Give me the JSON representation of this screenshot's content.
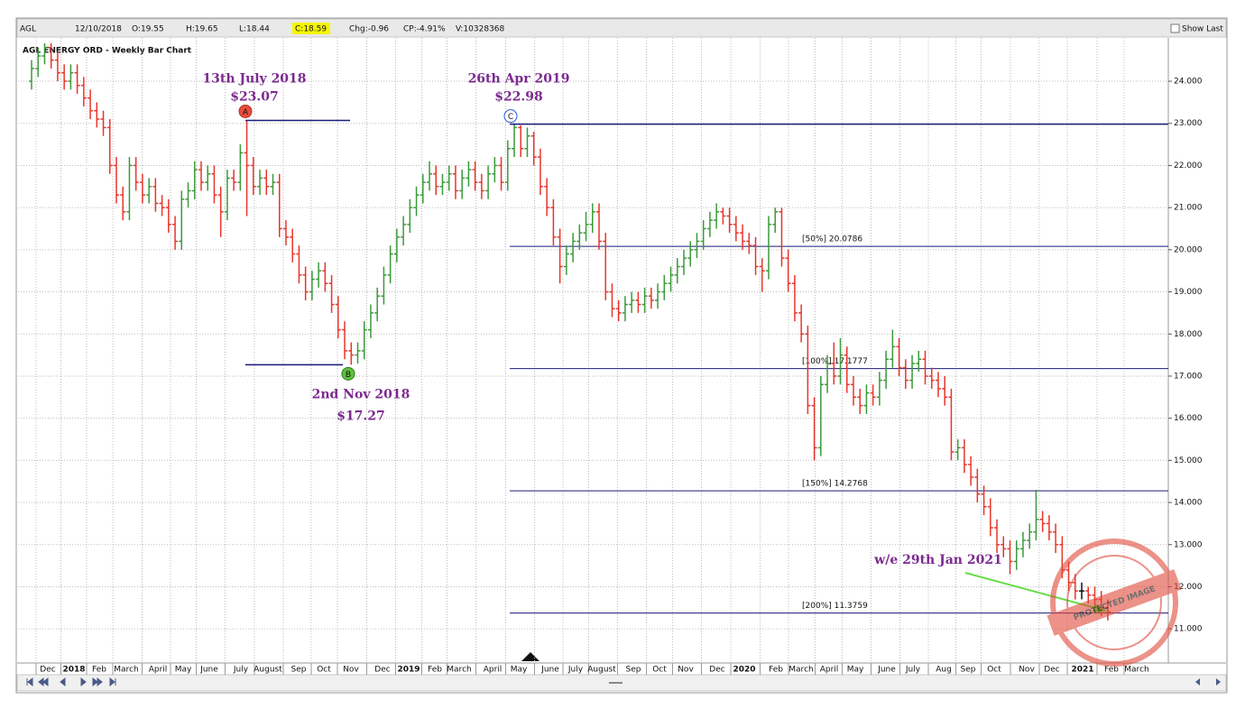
{
  "toolbar": {
    "symbol": "AGL",
    "date": "12/10/2018",
    "open": "O:19.55",
    "high": "H:19.65",
    "low": "L:18.44",
    "close": "C:18.59",
    "change": "Chg:-0.96",
    "change_percent": "CP:-4.91%",
    "volume": "V:10328368",
    "show_last": "Show Last"
  },
  "chart_data": {
    "type": "ohlc",
    "title": "AGL ENERGY ORD - Weekly Bar Chart",
    "up_color": "#3a9a3a",
    "down_color": "#e8352b",
    "grid": true,
    "ylim": [
      10.19,
      24.9
    ],
    "yticks": [
      {
        "value": 11,
        "label": "11.000"
      },
      {
        "value": 12,
        "label": "12.000"
      },
      {
        "value": 13,
        "label": "13.000"
      },
      {
        "value": 14,
        "label": "14.000"
      },
      {
        "value": 15,
        "label": "15.000"
      },
      {
        "value": 16,
        "label": "16.000"
      },
      {
        "value": 17,
        "label": "17.000"
      },
      {
        "value": 18,
        "label": "18.000"
      },
      {
        "value": 19,
        "label": "19.000"
      },
      {
        "value": 20,
        "label": "20.000"
      },
      {
        "value": 21,
        "label": "21.000"
      },
      {
        "value": 22,
        "label": "22.000"
      },
      {
        "value": 23,
        "label": "23.000"
      },
      {
        "value": 24,
        "label": "24.000"
      }
    ],
    "x_labels": [
      "Dec",
      "2018",
      "Feb",
      "March",
      "April",
      "May",
      "June",
      "July",
      "August",
      "Sep",
      "Oct",
      "Nov",
      "Dec",
      "2019",
      "Feb",
      "March",
      "April",
      "May",
      "June",
      "July",
      "August",
      "Sep",
      "Oct",
      "Nov",
      "Dec",
      "2020",
      "Feb",
      "March",
      "April",
      "May",
      "June",
      "July",
      "Aug",
      "Sep",
      "Oct",
      "Nov",
      "Dec",
      "2021",
      "Feb",
      "March"
    ],
    "annotations": [
      {
        "marker": "A",
        "date": "13th July 2018",
        "price": {
          "value": 23.07,
          "label": "$23.07"
        }
      },
      {
        "marker": "B",
        "date": "2nd Nov 2018",
        "price": {
          "value": 17.27,
          "label": "$17.27"
        }
      },
      {
        "marker": "C",
        "date": "26th Apr 2019",
        "price": {
          "value": 22.98,
          "label": "$22.98"
        }
      }
    ],
    "fib_levels": [
      {
        "value": 20.0786,
        "label": "[50%] 20.0786"
      },
      {
        "value": 17.1777,
        "label": "[100%] 17.1777"
      },
      {
        "value": 14.2768,
        "label": "[150%] 14.2768"
      },
      {
        "value": 11.3759,
        "label": "[200%] 11.3759"
      }
    ],
    "note": "w/e 29th Jan 2021",
    "watermark": "PROTECTED IMAGE",
    "bars": [
      [
        24.0,
        24.5,
        23.8,
        24.3
      ],
      [
        24.3,
        24.8,
        24.1,
        24.6
      ],
      [
        24.6,
        24.9,
        24.4,
        24.8
      ],
      [
        24.8,
        24.9,
        24.3,
        24.5
      ],
      [
        24.5,
        24.7,
        24.0,
        24.2
      ],
      [
        24.2,
        24.4,
        23.8,
        24.0
      ],
      [
        24.0,
        24.4,
        23.8,
        24.2
      ],
      [
        24.2,
        24.4,
        23.7,
        23.9
      ],
      [
        23.9,
        24.1,
        23.4,
        23.6
      ],
      [
        23.6,
        23.8,
        23.1,
        23.3
      ],
      [
        23.3,
        23.5,
        22.9,
        23.1
      ],
      [
        23.1,
        23.3,
        22.7,
        22.9
      ],
      [
        22.9,
        23.1,
        21.8,
        22.0
      ],
      [
        22.0,
        22.2,
        21.1,
        21.3
      ],
      [
        21.3,
        21.5,
        20.7,
        20.9
      ],
      [
        20.9,
        22.2,
        20.7,
        22.0
      ],
      [
        22.0,
        22.2,
        21.4,
        21.6
      ],
      [
        21.6,
        21.8,
        21.1,
        21.3
      ],
      [
        21.3,
        21.7,
        21.1,
        21.5
      ],
      [
        21.5,
        21.7,
        20.9,
        21.1
      ],
      [
        21.1,
        21.3,
        20.8,
        21.0
      ],
      [
        21.0,
        21.2,
        20.4,
        20.6
      ],
      [
        20.6,
        20.8,
        20.0,
        20.2
      ],
      [
        20.2,
        21.4,
        20.0,
        21.2
      ],
      [
        21.2,
        21.6,
        21.0,
        21.4
      ],
      [
        21.4,
        22.1,
        21.2,
        21.9
      ],
      [
        21.9,
        22.1,
        21.4,
        21.6
      ],
      [
        21.6,
        22.0,
        21.4,
        21.8
      ],
      [
        21.8,
        22.0,
        21.1,
        21.3
      ],
      [
        21.3,
        21.5,
        20.3,
        20.9
      ],
      [
        20.9,
        21.9,
        20.7,
        21.7
      ],
      [
        21.7,
        21.9,
        21.4,
        21.6
      ],
      [
        21.6,
        22.5,
        21.4,
        22.3
      ],
      [
        22.3,
        23.07,
        20.8,
        22.0
      ],
      [
        22.0,
        22.2,
        21.3,
        21.5
      ],
      [
        21.5,
        21.9,
        21.3,
        21.7
      ],
      [
        21.7,
        21.9,
        21.3,
        21.5
      ],
      [
        21.5,
        21.8,
        21.3,
        21.6
      ],
      [
        21.6,
        21.8,
        20.3,
        20.5
      ],
      [
        20.5,
        20.7,
        20.1,
        20.3
      ],
      [
        20.3,
        20.5,
        19.7,
        19.9
      ],
      [
        19.9,
        20.1,
        19.2,
        19.4
      ],
      [
        19.4,
        19.6,
        18.8,
        19.0
      ],
      [
        19.0,
        19.5,
        18.8,
        19.3
      ],
      [
        19.3,
        19.7,
        19.1,
        19.5
      ],
      [
        19.5,
        19.7,
        19.0,
        19.2
      ],
      [
        19.2,
        19.4,
        18.5,
        18.7
      ],
      [
        18.7,
        18.9,
        17.9,
        18.1
      ],
      [
        18.1,
        18.3,
        17.4,
        17.6
      ],
      [
        17.6,
        17.8,
        17.27,
        17.5
      ],
      [
        17.5,
        17.8,
        17.3,
        17.6
      ],
      [
        17.6,
        18.3,
        17.4,
        18.1
      ],
      [
        18.1,
        18.7,
        17.9,
        18.5
      ],
      [
        18.5,
        19.1,
        18.3,
        18.9
      ],
      [
        18.9,
        19.6,
        18.7,
        19.4
      ],
      [
        19.4,
        20.1,
        19.2,
        19.9
      ],
      [
        19.9,
        20.5,
        19.7,
        20.3
      ],
      [
        20.3,
        20.8,
        20.1,
        20.6
      ],
      [
        20.6,
        21.2,
        20.4,
        21.0
      ],
      [
        21.0,
        21.5,
        20.8,
        21.3
      ],
      [
        21.3,
        21.8,
        21.1,
        21.6
      ],
      [
        21.6,
        22.1,
        21.4,
        21.8
      ],
      [
        21.8,
        22.0,
        21.3,
        21.5
      ],
      [
        21.5,
        21.8,
        21.3,
        21.6
      ],
      [
        21.6,
        22.0,
        21.4,
        21.8
      ],
      [
        21.8,
        22.0,
        21.2,
        21.4
      ],
      [
        21.4,
        21.9,
        21.2,
        21.7
      ],
      [
        21.7,
        22.1,
        21.5,
        21.9
      ],
      [
        21.9,
        22.1,
        21.4,
        21.6
      ],
      [
        21.6,
        21.8,
        21.2,
        21.4
      ],
      [
        21.4,
        22.0,
        21.2,
        21.8
      ],
      [
        21.8,
        22.2,
        21.6,
        22.0
      ],
      [
        22.0,
        22.2,
        21.4,
        21.6
      ],
      [
        21.6,
        22.6,
        21.4,
        22.4
      ],
      [
        22.4,
        22.98,
        22.2,
        22.9
      ],
      [
        22.9,
        22.95,
        22.2,
        22.4
      ],
      [
        22.4,
        22.9,
        22.2,
        22.7
      ],
      [
        22.7,
        22.8,
        22.0,
        22.2
      ],
      [
        22.2,
        22.4,
        21.3,
        21.5
      ],
      [
        21.5,
        21.7,
        20.8,
        21.0
      ],
      [
        21.0,
        21.2,
        20.1,
        20.3
      ],
      [
        20.3,
        20.5,
        19.2,
        19.6
      ],
      [
        19.6,
        20.1,
        19.4,
        19.9
      ],
      [
        19.9,
        20.4,
        19.7,
        20.2
      ],
      [
        20.2,
        20.6,
        20.0,
        20.4
      ],
      [
        20.4,
        20.9,
        20.2,
        20.6
      ],
      [
        20.6,
        21.1,
        20.4,
        20.9
      ],
      [
        20.9,
        21.1,
        20.0,
        20.2
      ],
      [
        20.2,
        20.4,
        18.8,
        19.0
      ],
      [
        19.0,
        19.2,
        18.4,
        18.6
      ],
      [
        18.6,
        18.8,
        18.3,
        18.5
      ],
      [
        18.5,
        18.9,
        18.3,
        18.7
      ],
      [
        18.7,
        19.0,
        18.5,
        18.8
      ],
      [
        18.8,
        19.0,
        18.5,
        18.7
      ],
      [
        18.7,
        19.1,
        18.5,
        18.9
      ],
      [
        18.9,
        19.1,
        18.6,
        18.8
      ],
      [
        18.8,
        19.2,
        18.6,
        19.0
      ],
      [
        19.0,
        19.4,
        18.8,
        19.2
      ],
      [
        19.2,
        19.6,
        19.0,
        19.4
      ],
      [
        19.4,
        19.8,
        19.2,
        19.6
      ],
      [
        19.6,
        20.0,
        19.4,
        19.8
      ],
      [
        19.8,
        20.2,
        19.6,
        20.0
      ],
      [
        20.0,
        20.4,
        19.8,
        20.2
      ],
      [
        20.2,
        20.7,
        20.0,
        20.5
      ],
      [
        20.5,
        20.9,
        20.3,
        20.7
      ],
      [
        20.7,
        21.1,
        20.5,
        20.9
      ],
      [
        20.9,
        21.0,
        20.6,
        20.8
      ],
      [
        20.8,
        21.0,
        20.4,
        20.6
      ],
      [
        20.6,
        20.8,
        20.2,
        20.4
      ],
      [
        20.4,
        20.6,
        20.0,
        20.2
      ],
      [
        20.2,
        20.4,
        19.9,
        20.1
      ],
      [
        20.1,
        20.3,
        19.4,
        19.6
      ],
      [
        19.6,
        19.8,
        19.0,
        19.5
      ],
      [
        19.5,
        20.8,
        19.3,
        20.6
      ],
      [
        20.6,
        21.0,
        20.4,
        20.9
      ],
      [
        20.9,
        21.0,
        19.6,
        19.8
      ],
      [
        19.8,
        20.0,
        19.0,
        19.2
      ],
      [
        19.2,
        19.4,
        18.3,
        18.5
      ],
      [
        18.5,
        18.7,
        17.8,
        18.0
      ],
      [
        18.0,
        18.2,
        16.1,
        16.3
      ],
      [
        16.3,
        16.5,
        15.0,
        15.3
      ],
      [
        15.3,
        17.0,
        15.1,
        16.8
      ],
      [
        16.8,
        17.5,
        16.6,
        17.3
      ],
      [
        17.3,
        17.8,
        16.8,
        17.0
      ],
      [
        17.0,
        17.9,
        16.8,
        17.5
      ],
      [
        17.5,
        17.7,
        16.6,
        16.8
      ],
      [
        16.8,
        17.0,
        16.3,
        16.5
      ],
      [
        16.5,
        16.7,
        16.1,
        16.3
      ],
      [
        16.3,
        16.8,
        16.1,
        16.6
      ],
      [
        16.6,
        16.8,
        16.3,
        16.5
      ],
      [
        16.5,
        17.1,
        16.3,
        16.9
      ],
      [
        16.9,
        17.6,
        16.7,
        17.4
      ],
      [
        17.4,
        18.1,
        17.2,
        17.7
      ],
      [
        17.7,
        17.9,
        17.0,
        17.2
      ],
      [
        17.2,
        17.4,
        16.7,
        16.9
      ],
      [
        16.9,
        17.5,
        16.7,
        17.3
      ],
      [
        17.3,
        17.6,
        17.1,
        17.4
      ],
      [
        17.4,
        17.6,
        16.8,
        17.0
      ],
      [
        17.0,
        17.2,
        16.7,
        16.9
      ],
      [
        16.9,
        17.1,
        16.5,
        16.7
      ],
      [
        16.7,
        17.0,
        16.3,
        16.5
      ],
      [
        16.5,
        16.7,
        15.0,
        15.2
      ],
      [
        15.2,
        15.5,
        15.0,
        15.3
      ],
      [
        15.3,
        15.5,
        14.7,
        14.9
      ],
      [
        14.9,
        15.1,
        14.4,
        14.6
      ],
      [
        14.6,
        14.8,
        14.0,
        14.2
      ],
      [
        14.2,
        14.4,
        13.7,
        13.9
      ],
      [
        13.9,
        14.1,
        13.2,
        13.4
      ],
      [
        13.4,
        13.6,
        12.8,
        13.0
      ],
      [
        13.0,
        13.2,
        12.7,
        12.9
      ],
      [
        12.9,
        13.1,
        12.3,
        12.6
      ],
      [
        12.6,
        13.1,
        12.4,
        12.9
      ],
      [
        12.9,
        13.3,
        12.7,
        13.1
      ],
      [
        13.1,
        13.5,
        12.9,
        13.3
      ],
      [
        13.3,
        14.3,
        13.1,
        13.6
      ],
      [
        13.6,
        13.8,
        13.3,
        13.5
      ],
      [
        13.5,
        13.7,
        13.1,
        13.3
      ],
      [
        13.3,
        13.5,
        12.8,
        13.0
      ],
      [
        13.0,
        13.2,
        12.2,
        12.4
      ],
      [
        12.4,
        12.6,
        11.9,
        12.1
      ],
      [
        12.1,
        12.3,
        11.7,
        11.9
      ],
      [
        11.9,
        12.1,
        11.7,
        11.9
      ],
      [
        11.9,
        12.0,
        11.6,
        11.8
      ],
      [
        11.8,
        12.0,
        11.5,
        11.7
      ],
      [
        11.7,
        11.9,
        11.3,
        11.5
      ],
      [
        11.5,
        11.7,
        11.2,
        11.4
      ]
    ]
  }
}
